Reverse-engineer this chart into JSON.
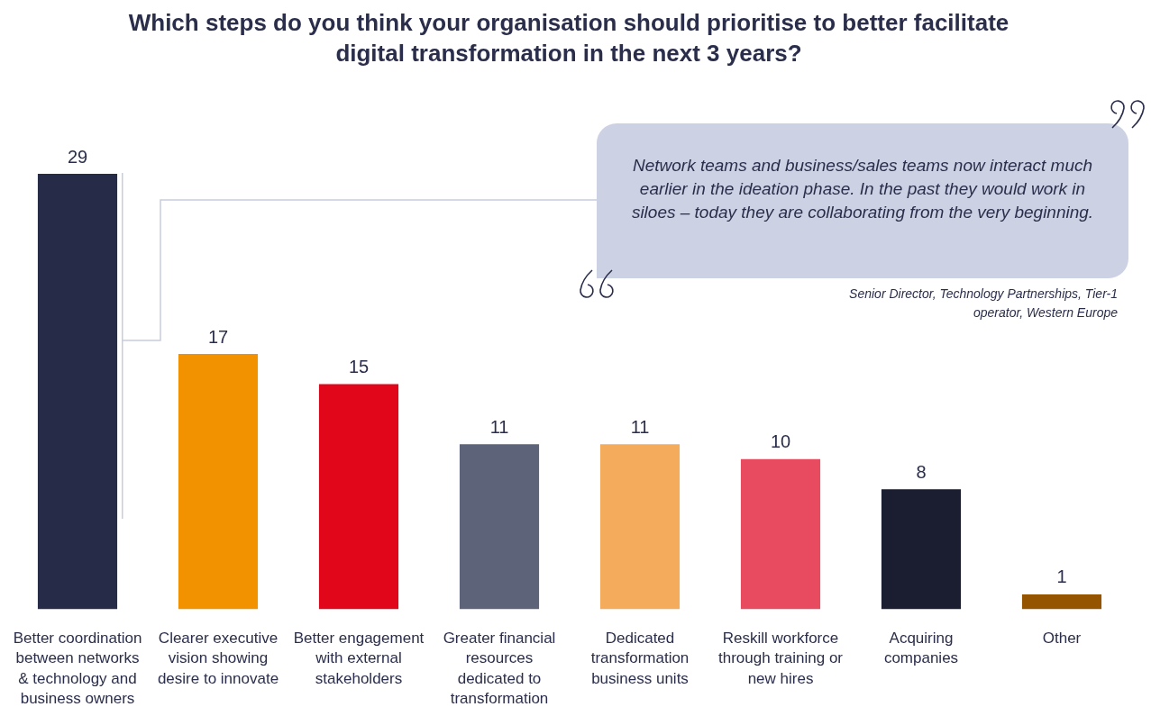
{
  "chart_data": {
    "type": "bar",
    "title": "Which steps do you think your organisation should prioritise to better facilitate digital transformation in the next 3 years?",
    "categories": [
      "Better coordination between networks & technology and business owners",
      "Clearer executive vision showing desire to innovate",
      "Better engagement with external stakeholders",
      "Greater financial resources dedicated to transformation",
      "Dedicated transformation business units",
      "Reskill workforce through training or new hires",
      "Acquiring companies",
      "Other"
    ],
    "values": [
      29,
      17,
      15,
      11,
      11,
      10,
      8,
      1
    ],
    "colors": [
      "#262c48",
      "#f39200",
      "#e2061b",
      "#5d6378",
      "#f4ab5b",
      "#e84a5f",
      "#1b1d30",
      "#955500"
    ],
    "ylim": [
      0,
      29
    ],
    "data_labels": true,
    "annotations": [
      "Network teams and business/sales teams now interact much earlier in the ideation phase. In the past they would work in siloes – today they are collaborating from the very beginning.",
      "Senior Director, Technology Partnerships, Tier-1 operator, Western Europe"
    ]
  }
}
